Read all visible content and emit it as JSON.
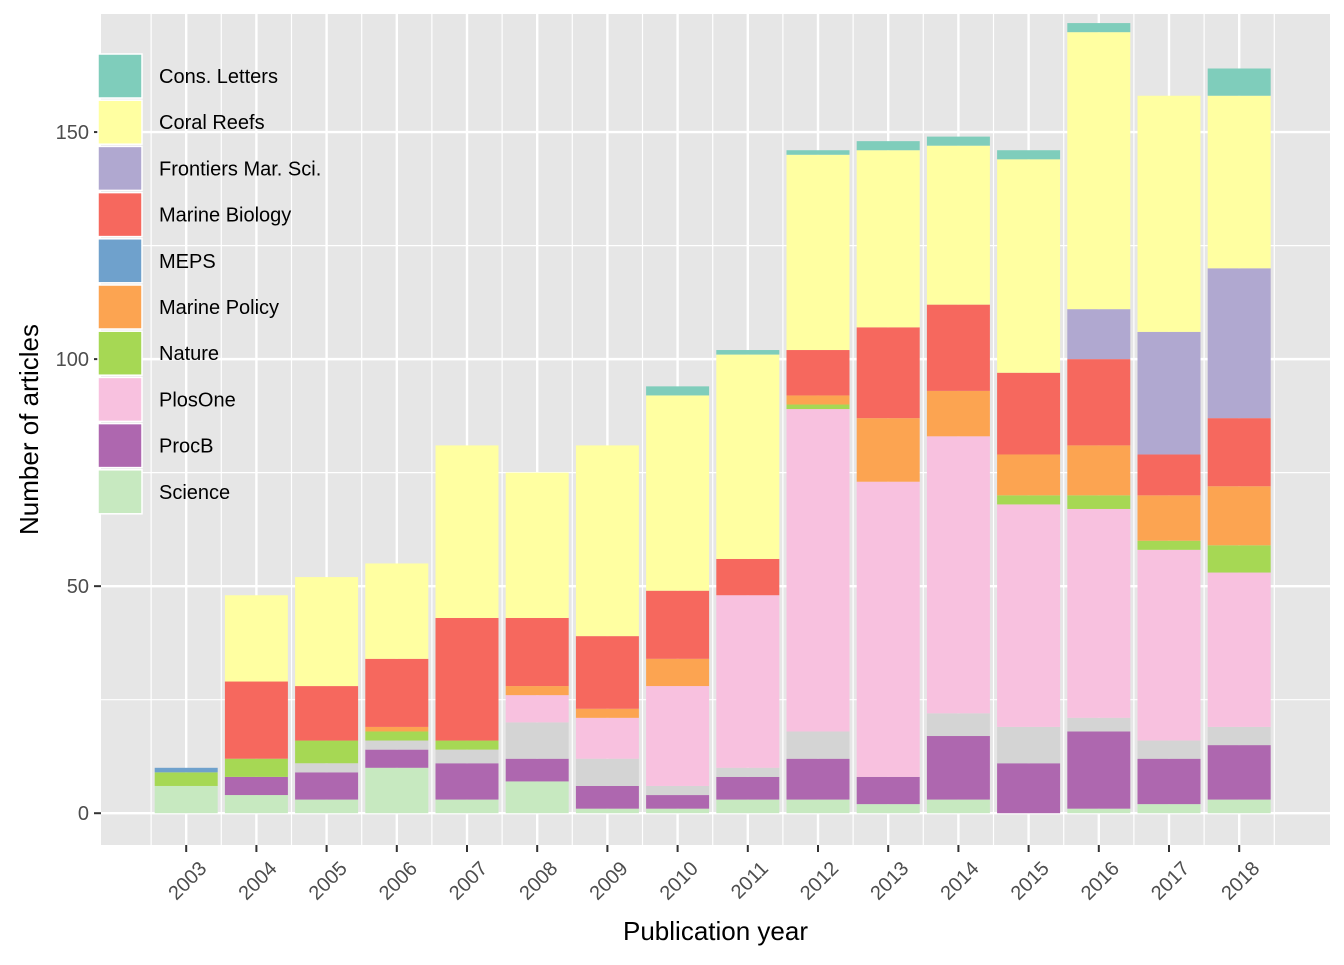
{
  "chart_data": {
    "type": "bar",
    "stacked": true,
    "title": "",
    "xlabel": "Publication year",
    "ylabel": "Number of articles",
    "ylim": [
      -7,
      176
    ],
    "yticks": [
      0,
      50,
      100,
      150
    ],
    "ytick_labels": [
      "0",
      "50",
      "100",
      "150"
    ],
    "grid": true,
    "legend_position": "top-left inside",
    "categories": [
      "2003",
      "2004",
      "2005",
      "2006",
      "2007",
      "2008",
      "2009",
      "2010",
      "2011",
      "2012",
      "2013",
      "2014",
      "2015",
      "2016",
      "2017",
      "2018"
    ],
    "colors": {
      "panel_background": "#E6E6E6",
      "grid": "#FFFFFF",
      "unlabeled_segment": "#D4D4D4"
    },
    "series": [
      {
        "name": "Science",
        "color": "#C7E9C0",
        "values": [
          6,
          4,
          3,
          10,
          3,
          7,
          1,
          1,
          3,
          3,
          2,
          3,
          0,
          1,
          2,
          3
        ]
      },
      {
        "name": "",
        "color": "#D4D4D4",
        "values": [
          0,
          0,
          0,
          0,
          0,
          0,
          0,
          0,
          0,
          0,
          0,
          0,
          0,
          0,
          0,
          0
        ]
      },
      {
        "name": "ProcB",
        "color": "#AE67AF",
        "values": [
          0,
          4,
          6,
          4,
          8,
          5,
          5,
          3,
          5,
          9,
          6,
          14,
          11,
          17,
          10,
          12
        ]
      },
      {
        "name": "__unlabeled_gray",
        "color": "#D4D4D4",
        "values": [
          0,
          0,
          2,
          2,
          3,
          8,
          6,
          2,
          2,
          6,
          0,
          5,
          8,
          3,
          4,
          4
        ]
      },
      {
        "name": "PlosOne",
        "color": "#F8C1DF",
        "values": [
          0,
          0,
          0,
          0,
          0,
          6,
          9,
          22,
          38,
          71,
          65,
          61,
          49,
          46,
          42,
          34
        ]
      },
      {
        "name": "Nature",
        "color": "#A6D854",
        "values": [
          3,
          4,
          5,
          2,
          2,
          0,
          0,
          0,
          0,
          1,
          0,
          0,
          2,
          3,
          2,
          6
        ]
      },
      {
        "name": "Marine Policy",
        "color": "#FCA451",
        "values": [
          0,
          0,
          0,
          1,
          0,
          2,
          2,
          6,
          0,
          2,
          14,
          10,
          9,
          11,
          10,
          13
        ]
      },
      {
        "name": "MEPS",
        "color": "#6FA1CC",
        "values": [
          1,
          0,
          0,
          0,
          0,
          0,
          0,
          0,
          0,
          0,
          0,
          0,
          0,
          0,
          0,
          0
        ]
      },
      {
        "name": "Marine Biology",
        "color": "#F6685E",
        "values": [
          0,
          17,
          12,
          15,
          27,
          15,
          16,
          15,
          8,
          10,
          20,
          19,
          18,
          19,
          9,
          15
        ]
      },
      {
        "name": "Frontiers Mar. Sci.",
        "color": "#B0A8D0",
        "values": [
          0,
          0,
          0,
          0,
          0,
          0,
          0,
          0,
          0,
          0,
          0,
          0,
          0,
          11,
          27,
          33
        ]
      },
      {
        "name": "Coral Reefs",
        "color": "#FFFFA1",
        "values": [
          0,
          19,
          24,
          21,
          38,
          32,
          42,
          43,
          45,
          43,
          39,
          35,
          47,
          61,
          52,
          38
        ]
      },
      {
        "name": "Cons. Letters",
        "color": "#7FCDBB",
        "values": [
          0,
          0,
          0,
          0,
          0,
          0,
          0,
          2,
          1,
          1,
          2,
          2,
          2,
          2,
          0,
          6
        ]
      }
    ],
    "legend": [
      {
        "name": "Cons. Letters",
        "color": "#7FCDBB"
      },
      {
        "name": "Coral Reefs",
        "color": "#FFFFA1"
      },
      {
        "name": "Frontiers Mar. Sci.",
        "color": "#B0A8D0"
      },
      {
        "name": "Marine Biology",
        "color": "#F6685E"
      },
      {
        "name": "MEPS",
        "color": "#6FA1CC"
      },
      {
        "name": "Marine Policy",
        "color": "#FCA451"
      },
      {
        "name": "Nature",
        "color": "#A6D854"
      },
      {
        "name": "PlosOne",
        "color": "#F8C1DF"
      },
      {
        "name": "ProcB",
        "color": "#AE67AF"
      },
      {
        "name": "Science",
        "color": "#C7E9C0"
      }
    ]
  }
}
